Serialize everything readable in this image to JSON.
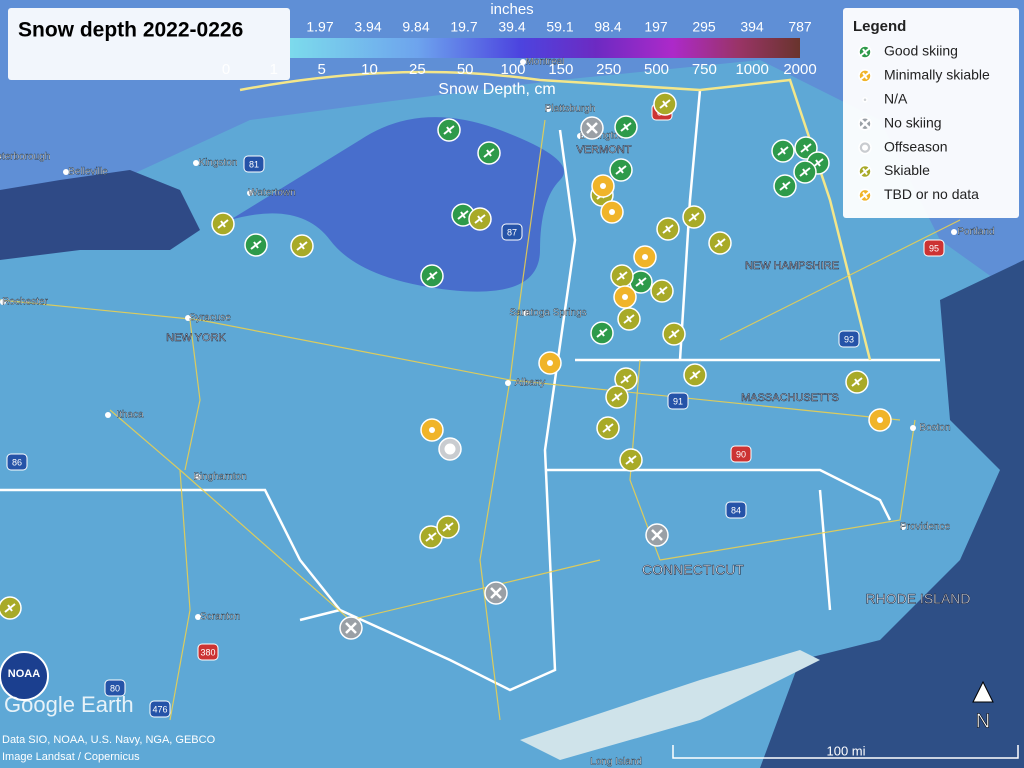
{
  "title": "Snow depth 2022-0226",
  "color_scale": {
    "inches_label": "inches",
    "inches": [
      "1.97",
      "3.94",
      "9.84",
      "19.7",
      "39.4",
      "59.1",
      "98.4",
      "197",
      "295",
      "394",
      "787"
    ],
    "cm": [
      "0",
      "1",
      "5",
      "10",
      "25",
      "50",
      "100",
      "150",
      "250",
      "500",
      "750",
      "1000",
      "2000"
    ],
    "cm_label": "Snow Depth, cm"
  },
  "legend": {
    "title": "Legend",
    "items": [
      "Good skiing",
      "Minimally skiable",
      "N/A",
      "No skiing",
      "Offseason",
      "Skiable",
      "TBD or no data"
    ]
  },
  "places": [
    "Belleville",
    "Watertown",
    "Kingston",
    "Peterborough",
    "Rochester",
    "Syracuse",
    "Ithaca",
    "Binghamton",
    "Scranton",
    "Albany",
    "Saratoga Springs",
    "Plattsburgh",
    "Burlington",
    "Montreal",
    "Portland",
    "Boston",
    "Providence",
    "Long Island"
  ],
  "states": [
    "NEW YORK",
    "VERMONT",
    "NEW HAMPSHIRE",
    "MASSACHUSETTS",
    "CONNECTICUT",
    "RHODE ISLAND"
  ],
  "highways": [
    "81",
    "87",
    "90",
    "91",
    "93",
    "95",
    "84",
    "86",
    "380",
    "476",
    "80",
    "89"
  ],
  "branding": {
    "noaa": "NOAA",
    "google": "Google Earth"
  },
  "attribution": [
    "Data SIO, NOAA, U.S. Navy, NGA, GEBCO",
    "Image Landsat / Copernicus"
  ],
  "scale_bar": "100 mi",
  "north": "N"
}
